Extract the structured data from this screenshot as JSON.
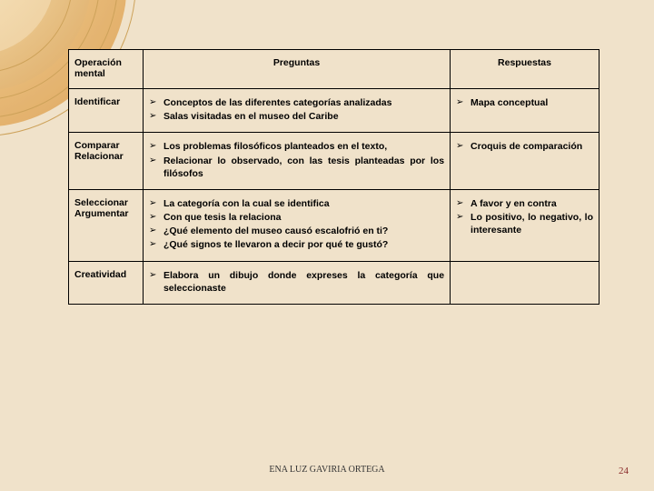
{
  "deco": {
    "colors": [
      "#f6d8a0",
      "#e8b56c",
      "#d89a4a",
      "#cda25a"
    ]
  },
  "table": {
    "headers": {
      "operacion": "Operación mental",
      "preguntas": "Preguntas",
      "respuestas": "Respuestas"
    },
    "rows": [
      {
        "op": "Identificar",
        "preg": [
          "Conceptos de las diferentes categorías analizadas",
          "Salas visitadas en el museo del Caribe"
        ],
        "resp": [
          "Mapa conceptual"
        ]
      },
      {
        "op": "Comparar Relacionar",
        "preg": [
          "Los problemas filosóficos planteados en el texto,",
          "Relacionar lo observado, con las tesis planteadas por los filósofos"
        ],
        "resp": [
          "Croquis de comparación"
        ]
      },
      {
        "op": "Seleccionar Argumentar",
        "preg": [
          "La categoría con la cual se identifica",
          "Con que tesis la relaciona",
          "¿Qué elemento del museo causó escalofrió en ti?",
          "¿Qué signos te llevaron a decir por qué te gustó?"
        ],
        "resp": [
          "A favor y en contra",
          "Lo positivo, lo negativo, lo interesante"
        ]
      },
      {
        "op": "Creatividad",
        "preg": [
          "Elabora un dibujo donde expreses la categoría que seleccionaste"
        ],
        "resp": []
      }
    ]
  },
  "bullet": "➢",
  "footer": "ENA LUZ GAVIRIA ORTEGA",
  "page": "24"
}
